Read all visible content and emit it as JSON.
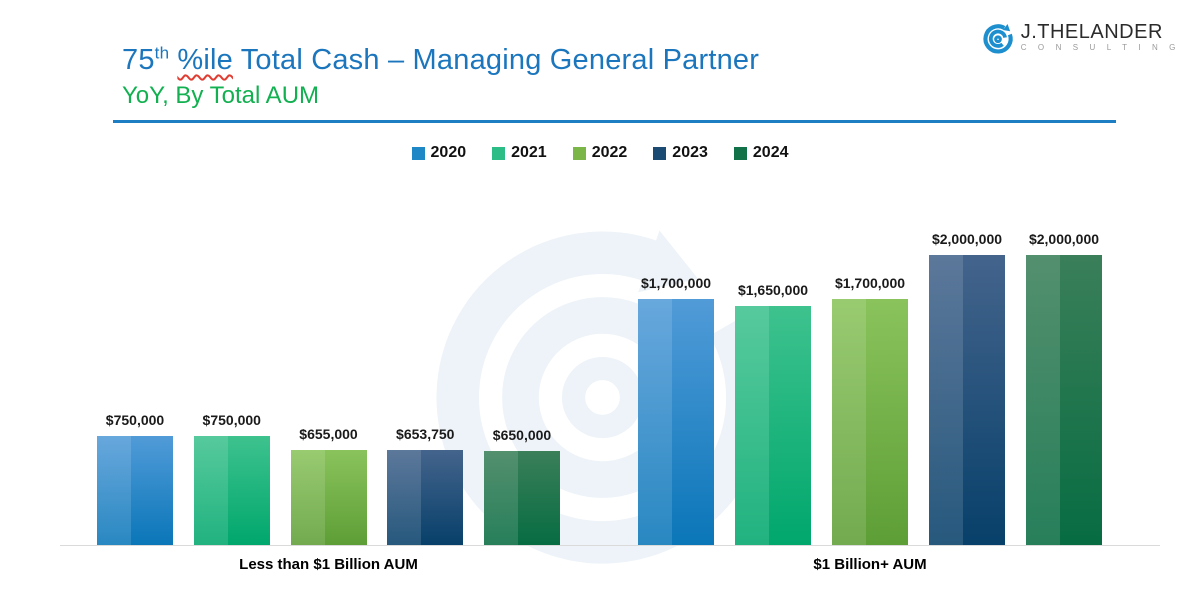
{
  "header": {
    "title": {
      "prefix": "75",
      "sup": "th",
      "squiggle_word": "%ile",
      "rest": " Total Cash – Managing General Partner"
    },
    "subtitle": "YoY, By Total AUM",
    "title_color": "#1b76bd",
    "subtitle_color": "#12b050",
    "divider_color": "#1d7ec4"
  },
  "logo": {
    "name": "J.THELANDER",
    "tagline": "C O N S U L T I N G",
    "icon": "spiral-arrow-icon",
    "icon_color": "#1e8fce"
  },
  "chart_data": {
    "type": "bar",
    "title": "75th %ile Total Cash – Managing General Partner",
    "subtitle": "YoY, By Total AUM",
    "categories": [
      "Less than $1 Billion AUM",
      "$1 Billion+ AUM"
    ],
    "series": [
      {
        "name": "2020",
        "values": [
          750000,
          1700000
        ],
        "labels": [
          "$750,000",
          "$1,700,000"
        ],
        "color_top": "#519bd8",
        "color_bottom": "#0a76b8",
        "legend_color": "#1e87c6"
      },
      {
        "name": "2021",
        "values": [
          750000,
          1650000
        ],
        "labels": [
          "$750,000",
          "$1,650,000"
        ],
        "color_top": "#3ec28e",
        "color_bottom": "#00a76d",
        "legend_color": "#2bbd85"
      },
      {
        "name": "2022",
        "values": [
          655000,
          1700000
        ],
        "labels": [
          "$655,000",
          "$1,700,000"
        ],
        "color_top": "#8ac35c",
        "color_bottom": "#5e9e36",
        "legend_color": "#7ab648"
      },
      {
        "name": "2023",
        "values": [
          653750,
          2000000
        ],
        "labels": [
          "$653,750",
          "$2,000,000"
        ],
        "color_top": "#44648c",
        "color_bottom": "#07406a",
        "legend_color": "#1b4a72"
      },
      {
        "name": "2024",
        "values": [
          650000,
          2000000
        ],
        "labels": [
          "$650,000",
          "$2,000,000"
        ],
        "color_top": "#3a7f59",
        "color_bottom": "#076c42",
        "legend_color": "#11724a"
      }
    ],
    "ymax": 2000000,
    "ylim": [
      0,
      2000000
    ],
    "value_axis_visible": false,
    "data_labels": true,
    "grid": false,
    "legend_position": "top-center"
  }
}
